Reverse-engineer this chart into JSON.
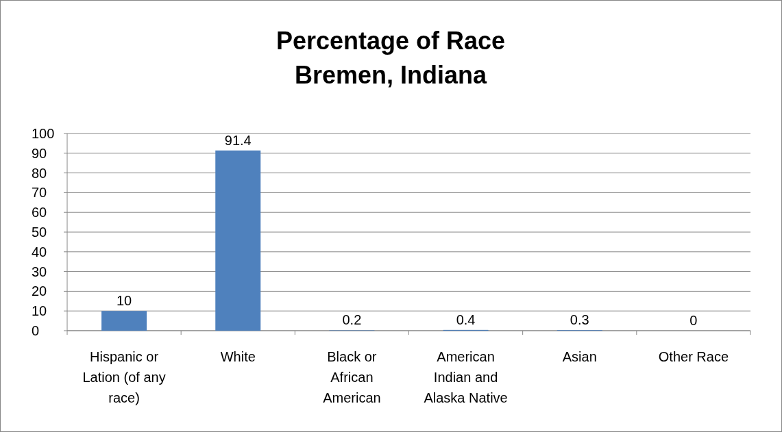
{
  "chart_data": {
    "type": "bar",
    "title": "Percentage of Race\nBremen, Indiana",
    "categories": [
      "Hispanic or Lation (of any race)",
      "White",
      "Black or African American",
      "American Indian and Alaska Native",
      "Asian",
      "Other Race"
    ],
    "values": [
      10,
      91.4,
      0.2,
      0.4,
      0.3,
      0
    ],
    "color": "#4f81bd",
    "ylim": [
      0,
      100
    ],
    "yticks": [
      0,
      10,
      20,
      30,
      40,
      50,
      60,
      70,
      80,
      90,
      100
    ],
    "grid": "y",
    "data_labels": true
  }
}
